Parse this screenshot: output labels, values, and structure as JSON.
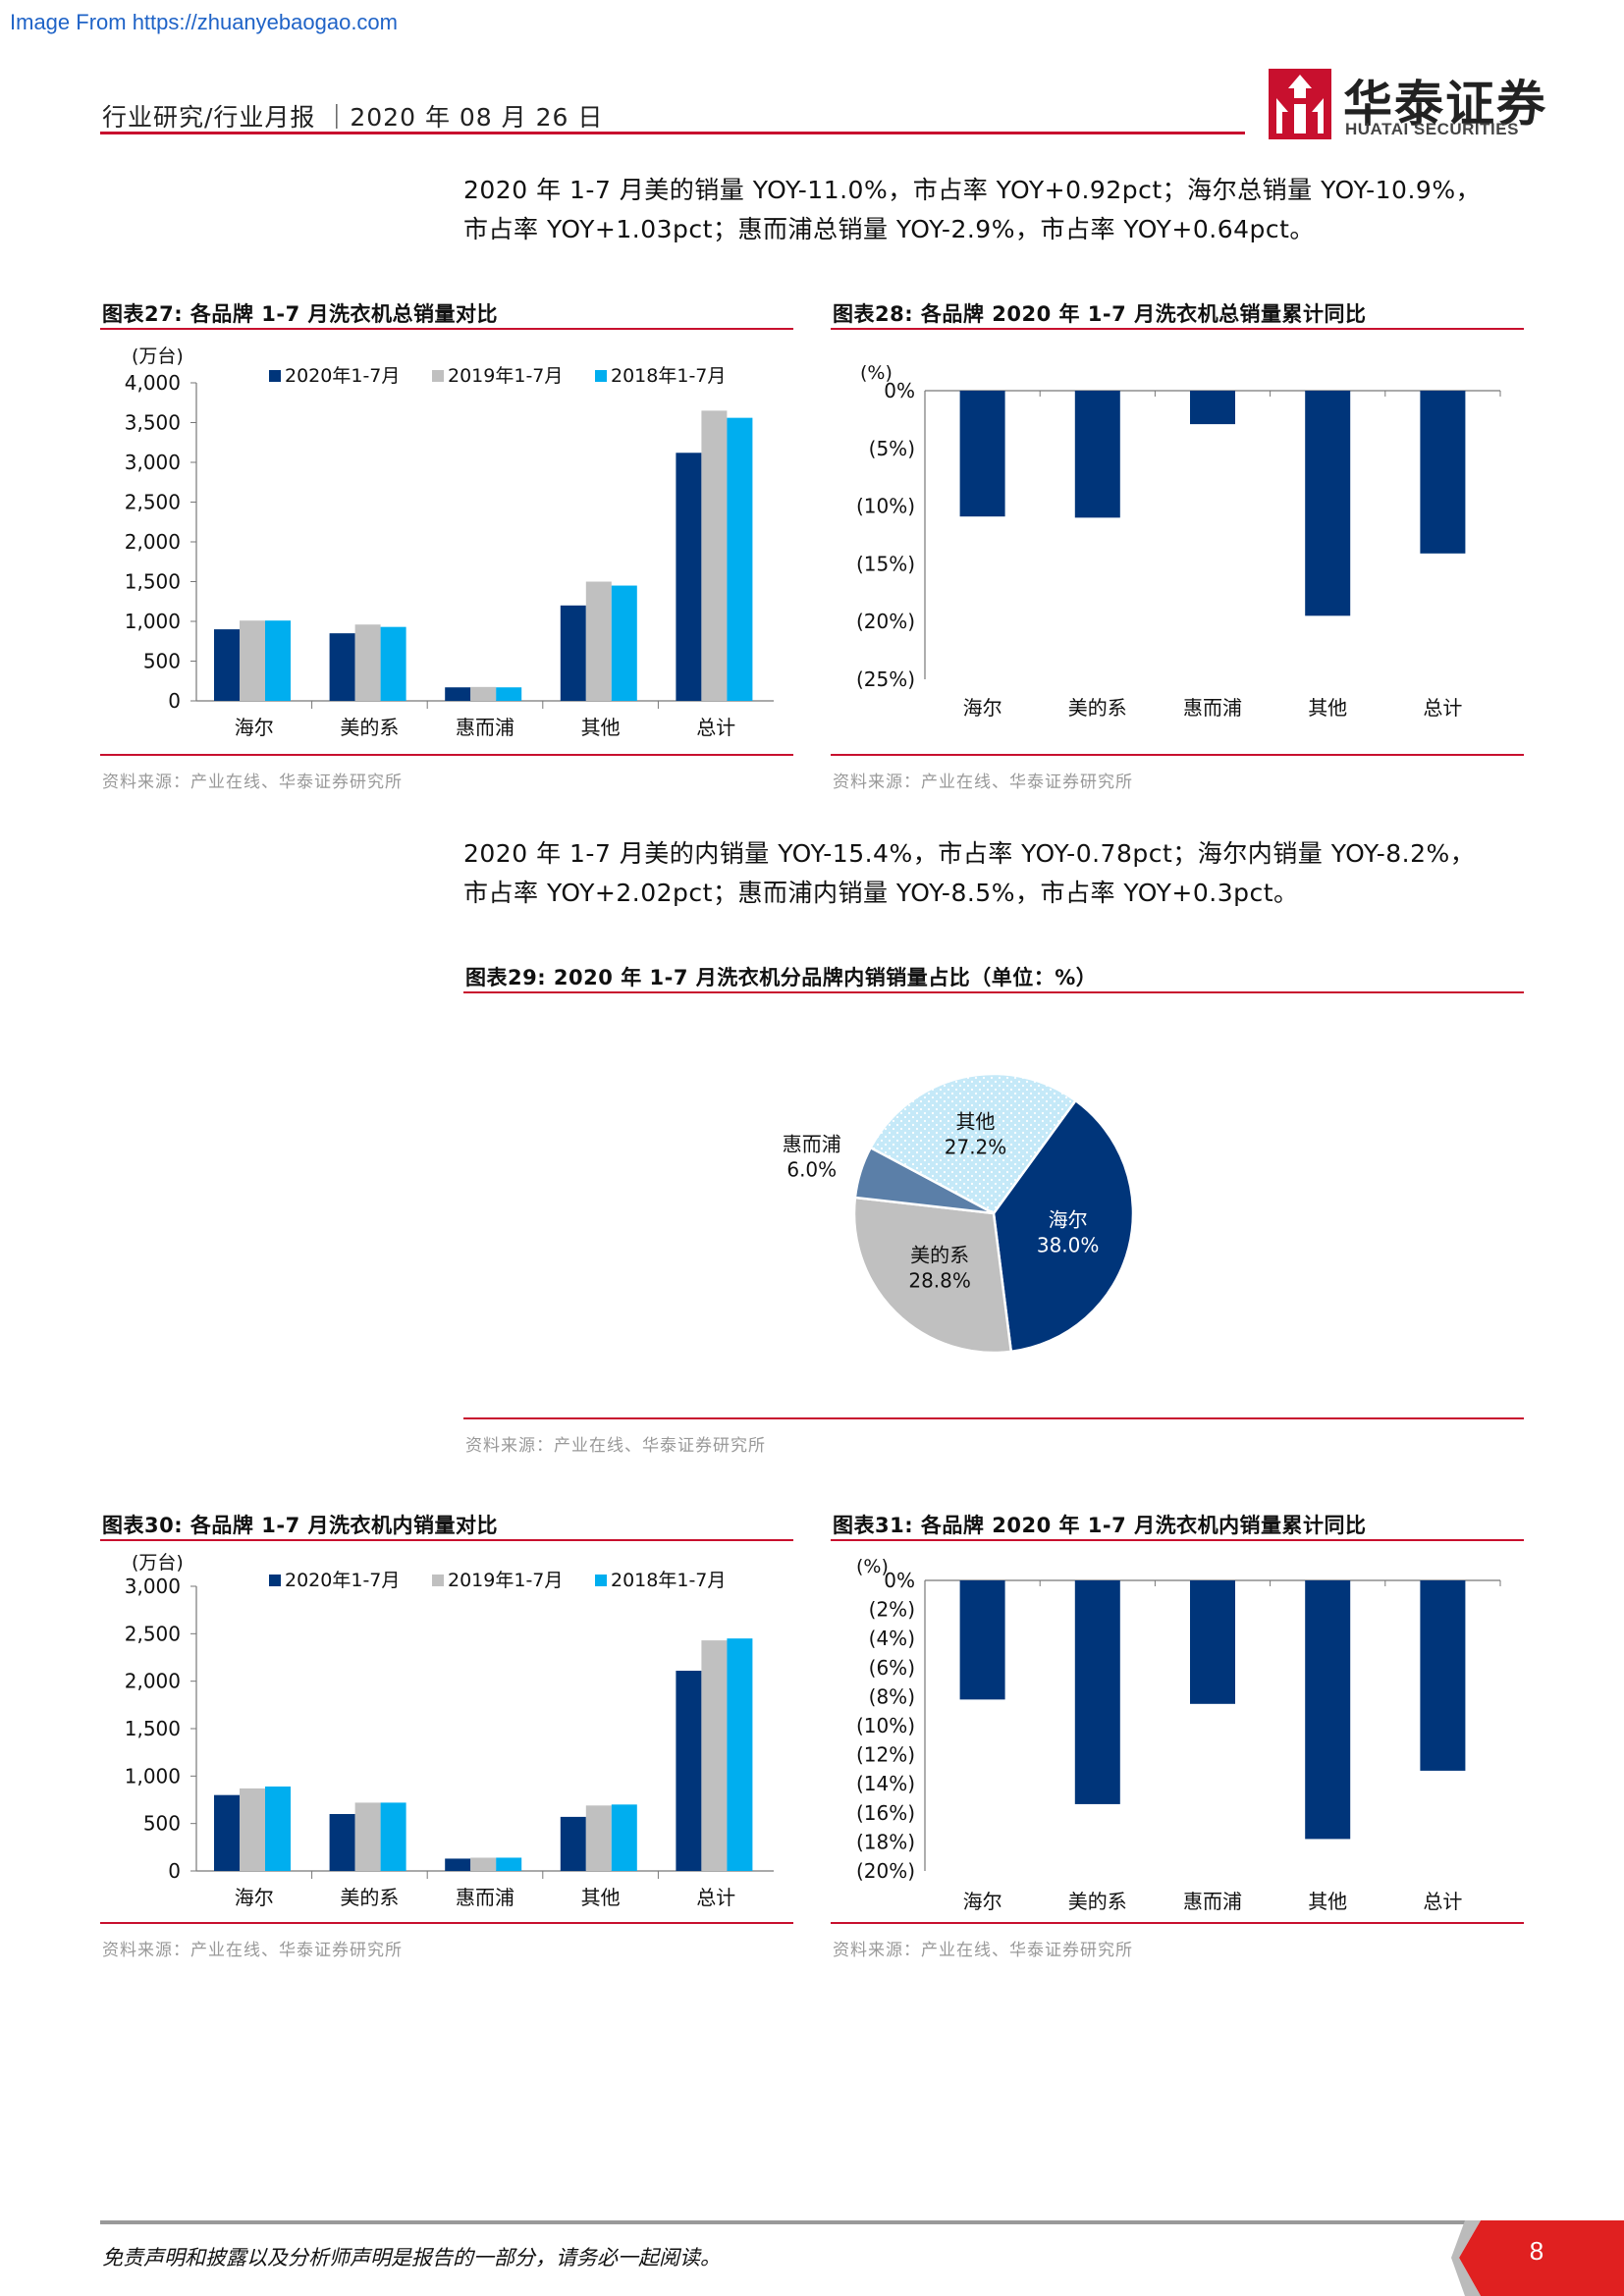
{
  "watermark": "Image From https://zhuanyebaogao.com",
  "header": {
    "text": "行业研究/行业月报 ｜2020 年 08 月 26 日",
    "logo_cn": "华泰证券",
    "logo_en": "HUATAI SECURITIES"
  },
  "para1": {
    "line1": "2020 年 1-7 月美的销量 YOY-11.0%，市占率 YOY+0.92pct；海尔总销量 YOY-10.9%，",
    "line2": "市占率 YOY+1.03pct；惠而浦总销量 YOY-2.9%，市占率 YOY+0.64pct。"
  },
  "para2": {
    "line1": "2020 年 1-7 月美的内销量 YOY-15.4%，市占率 YOY-0.78pct；海尔内销量 YOY-8.2%，",
    "line2": "市占率 YOY+2.02pct；惠而浦内销量 YOY-8.5%，市占率 YOY+0.3pct。"
  },
  "fig27": {
    "title": "图表27:   各品牌 1-7 月洗衣机总销量对比",
    "source": "资料来源：产业在线、华泰证券研究所"
  },
  "fig28": {
    "title": "图表28:   各品牌 2020 年 1-7 月洗衣机总销量累计同比",
    "source": "资料来源：产业在线、华泰证券研究所"
  },
  "fig29": {
    "title": "图表29:   2020 年 1-7 月洗衣机分品牌内销销量占比（单位：%）",
    "source": "资料来源：产业在线、华泰证券研究所"
  },
  "fig30": {
    "title": "图表30:   各品牌 1-7 月洗衣机内销量对比",
    "source": "资料来源：产业在线、华泰证券研究所"
  },
  "fig31": {
    "title": "图表31:   各品牌 2020 年 1-7 月洗衣机内销量累计同比",
    "source": "资料来源：产业在线、华泰证券研究所"
  },
  "chart_data": [
    {
      "id": "fig27",
      "type": "bar",
      "ylabel": "(万台)",
      "categories": [
        "海尔",
        "美的系",
        "惠而浦",
        "其他",
        "总计"
      ],
      "ylim": [
        0,
        4000
      ],
      "yticks": [
        0,
        500,
        1000,
        1500,
        2000,
        2500,
        3000,
        3500,
        4000
      ],
      "ytick_labels": [
        "0",
        "500",
        "1,000",
        "1,500",
        "2,000",
        "2,500",
        "3,000",
        "3,500",
        "4,000"
      ],
      "legend_position": "top",
      "series": [
        {
          "name": "2020年1-7月",
          "color": "#00357a",
          "values": [
            900,
            850,
            170,
            1200,
            3120
          ]
        },
        {
          "name": "2019年1-7月",
          "color": "#c0c0c0",
          "values": [
            1010,
            960,
            175,
            1500,
            3650
          ]
        },
        {
          "name": "2018年1-7月",
          "color": "#00aeef",
          "values": [
            1010,
            930,
            170,
            1450,
            3560
          ]
        }
      ]
    },
    {
      "id": "fig28",
      "type": "bar",
      "ylabel": "(%)",
      "categories": [
        "海尔",
        "美的系",
        "惠而浦",
        "其他",
        "总计"
      ],
      "ylim": [
        -25,
        0
      ],
      "yticks": [
        0,
        -5,
        -10,
        -15,
        -20,
        -25
      ],
      "ytick_labels": [
        "0%",
        "(5%)",
        "(10%)",
        "(15%)",
        "(20%)",
        "(25%)"
      ],
      "series": [
        {
          "color": "#00357a",
          "values": [
            -10.9,
            -11.0,
            -2.9,
            -19.5,
            -14.1
          ]
        }
      ]
    },
    {
      "id": "fig29",
      "type": "pie",
      "slices": [
        {
          "label": "海尔",
          "value": 38.0,
          "value_label": "38.0%",
          "color": "#00357a",
          "text_color": "#ffffff"
        },
        {
          "label": "美的系",
          "value": 28.8,
          "value_label": "28.8%",
          "color": "#c0c0c0",
          "text_color": "#111111"
        },
        {
          "label": "惠而浦",
          "value": 6.0,
          "value_label": "6.0%",
          "color": "#5b7fa8",
          "text_color": "#111111"
        },
        {
          "label": "其他",
          "value": 27.2,
          "value_label": "27.2%",
          "color": "#c5e9f8",
          "text_color": "#111111"
        }
      ]
    },
    {
      "id": "fig30",
      "type": "bar",
      "ylabel": "(万台)",
      "categories": [
        "海尔",
        "美的系",
        "惠而浦",
        "其他",
        "总计"
      ],
      "ylim": [
        0,
        3000
      ],
      "yticks": [
        0,
        500,
        1000,
        1500,
        2000,
        2500,
        3000
      ],
      "ytick_labels": [
        "0",
        "500",
        "1,000",
        "1,500",
        "2,000",
        "2,500",
        "3,000"
      ],
      "legend_position": "top",
      "series": [
        {
          "name": "2020年1-7月",
          "color": "#00357a",
          "values": [
            800,
            600,
            130,
            570,
            2110
          ]
        },
        {
          "name": "2019年1-7月",
          "color": "#c0c0c0",
          "values": [
            870,
            720,
            140,
            690,
            2430
          ]
        },
        {
          "name": "2018年1-7月",
          "color": "#00aeef",
          "values": [
            890,
            720,
            140,
            700,
            2450
          ]
        }
      ]
    },
    {
      "id": "fig31",
      "type": "bar",
      "ylabel": "(%)",
      "categories": [
        "海尔",
        "美的系",
        "惠而浦",
        "其他",
        "总计"
      ],
      "ylim": [
        -20,
        0
      ],
      "yticks": [
        0,
        -2,
        -4,
        -6,
        -8,
        -10,
        -12,
        -14,
        -16,
        -18,
        -20
      ],
      "ytick_labels": [
        "0%",
        "(2%)",
        "(4%)",
        "(6%)",
        "(8%)",
        "(10%)",
        "(12%)",
        "(14%)",
        "(16%)",
        "(18%)",
        "(20%)"
      ],
      "series": [
        {
          "color": "#00357a",
          "values": [
            -8.2,
            -15.4,
            -8.5,
            -17.8,
            -13.1
          ]
        }
      ]
    }
  ],
  "footer": {
    "text": "免责声明和披露以及分析师声明是报告的一部分，请务必一起阅读。",
    "page": "8"
  }
}
